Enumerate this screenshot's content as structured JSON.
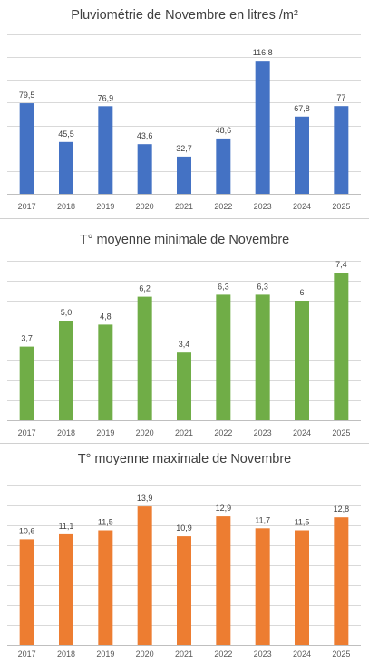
{
  "chart_data": [
    {
      "type": "bar",
      "title": "Pluviométrie de Novembre en litres /m²",
      "categories": [
        "2017",
        "2018",
        "2019",
        "2020",
        "2021",
        "2022",
        "2023",
        "2024",
        "2025"
      ],
      "values": [
        79.5,
        45.5,
        76.9,
        43.6,
        32.7,
        48.6,
        116.8,
        67.8,
        77
      ],
      "data_labels": [
        "79,5",
        "45,5",
        "76,9",
        "43,6",
        "32,7",
        "48,6",
        "116,8",
        "67,8",
        "77"
      ],
      "ylim": [
        0,
        140
      ],
      "ystep": 20,
      "color": "#4472c4",
      "grid": true,
      "legend": "none"
    },
    {
      "type": "bar",
      "title": "T° moyenne minimale de Novembre",
      "categories": [
        "2017",
        "2018",
        "2019",
        "2020",
        "2021",
        "2022",
        "2023",
        "2024",
        "2025"
      ],
      "values": [
        3.7,
        5.0,
        4.8,
        6.2,
        3.4,
        6.3,
        6.3,
        6,
        7.4
      ],
      "data_labels": [
        "3,7",
        "5,0",
        "4,8",
        "6,2",
        "3,4",
        "6,3",
        "6,3",
        "6",
        "7,4"
      ],
      "ylim": [
        0,
        8
      ],
      "ystep": 1,
      "color": "#70ad47",
      "grid": true,
      "legend": "none"
    },
    {
      "type": "bar",
      "title": "T° moyenne maximale de Novembre",
      "categories": [
        "2017",
        "2018",
        "2019",
        "2020",
        "2021",
        "2022",
        "2023",
        "2024",
        "2025"
      ],
      "values": [
        10.6,
        11.1,
        11.5,
        13.9,
        10.9,
        12.9,
        11.7,
        11.5,
        12.8
      ],
      "data_labels": [
        "10,6",
        "11,1",
        "11,5",
        "13,9",
        "10,9",
        "12,9",
        "11,7",
        "11,5",
        "12,8"
      ],
      "ylim": [
        0,
        16
      ],
      "ystep": 2,
      "color": "#ed7d31",
      "grid": true,
      "legend": "none"
    }
  ]
}
